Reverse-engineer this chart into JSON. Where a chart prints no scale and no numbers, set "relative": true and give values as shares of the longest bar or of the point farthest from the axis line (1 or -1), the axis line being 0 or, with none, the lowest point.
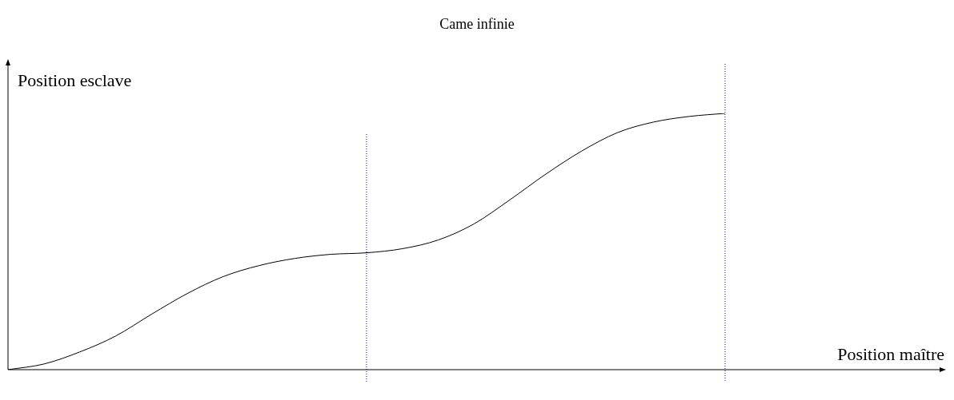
{
  "chart_data": {
    "type": "line",
    "title": "Came infinie",
    "annotations": [
      "Position maître"
    ],
    "ylabel": "Position esclave",
    "relative": true,
    "marker": "none",
    "line_style": "solid",
    "grid": false,
    "legend": false,
    "categories": [
      null,
      null,
      null,
      null,
      null,
      null,
      null,
      null,
      null,
      null,
      null,
      null,
      null,
      null,
      null,
      null,
      null,
      null,
      null,
      null,
      null
    ],
    "series": [
      {
        "color": "#000000",
        "values": [
          0,
          0.022,
          0.069,
          0.131,
          0.216,
          0.297,
          0.363,
          0.406,
          0.434,
          0.45,
          0.456,
          0.472,
          0.506,
          0.569,
          0.663,
          0.763,
          0.853,
          0.925,
          0.966,
          0.988,
          1
        ]
      }
    ]
  }
}
